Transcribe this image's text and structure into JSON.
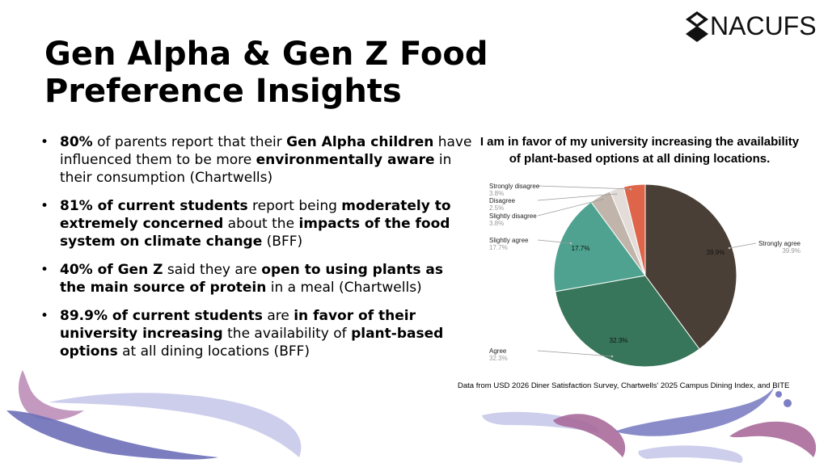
{
  "slide": {
    "title_line1": "Gen Alpha & Gen Z Food",
    "title_line2": "Preference Insights",
    "logo_text": "NACUFS",
    "source_note": "Data from USD 2026 Diner Satisfaction Survey, Chartwells' 2025 Campus Dining Index, and BITE"
  },
  "bullets": [
    {
      "runs": [
        {
          "t": "80%",
          "b": true
        },
        {
          "t": " of parents report that their ",
          "b": false
        },
        {
          "t": "Gen Alpha children",
          "b": true
        },
        {
          "t": " have influenced them to be more ",
          "b": false
        },
        {
          "t": "environmentally aware",
          "b": true
        },
        {
          "t": " in their consumption (Chartwells)",
          "b": false
        }
      ]
    },
    {
      "runs": [
        {
          "t": "81% of current students",
          "b": true
        },
        {
          "t": " report being ",
          "b": false
        },
        {
          "t": "moderately to extremely concerned",
          "b": true
        },
        {
          "t": " about the ",
          "b": false
        },
        {
          "t": "impacts of the food system on climate change",
          "b": true
        },
        {
          "t": "  (BFF)",
          "b": false
        }
      ]
    },
    {
      "runs": [
        {
          "t": "40% of Gen Z",
          "b": true
        },
        {
          "t": " said they are ",
          "b": false
        },
        {
          "t": "open to using plants as the main source of protein",
          "b": true
        },
        {
          "t": " in a meal (Chartwells)",
          "b": false
        }
      ]
    },
    {
      "runs": [
        {
          "t": "89.9% of current students",
          "b": true
        },
        {
          "t": " are ",
          "b": false
        },
        {
          "t": "in favor of their university increasing",
          "b": true
        },
        {
          "t": " the availability of ",
          "b": false
        },
        {
          "t": "plant-based options",
          "b": true
        },
        {
          "t": " at all dining locations (BFF)",
          "b": false
        }
      ]
    }
  ],
  "chart_data": {
    "type": "pie",
    "title": "I am in favor of my university increasing the availability of plant-based options at all dining locations.",
    "categories": [
      "Strongly agree",
      "Agree",
      "Slightly agree",
      "Slightly disagree",
      "Disagree",
      "Strongly disagree"
    ],
    "values": [
      39.9,
      32.3,
      17.7,
      3.8,
      2.5,
      3.8
    ],
    "value_labels": [
      "39.9%",
      "32.3%",
      "17.7%",
      "3.8%",
      "2.5%",
      "3.8%"
    ],
    "colors": [
      "#4a3f36",
      "#37765a",
      "#4ea28f",
      "#c1b5ab",
      "#e3dcd9",
      "#de644a"
    ],
    "inside_labels": [
      "39.9%",
      "32.3%",
      "17.7%",
      "",
      "",
      ""
    ],
    "legend": "callouts"
  },
  "colors": {
    "deco_purple": "#7a7cc1",
    "deco_lavender": "#c3c4e8",
    "deco_mauve": "#a46899"
  }
}
